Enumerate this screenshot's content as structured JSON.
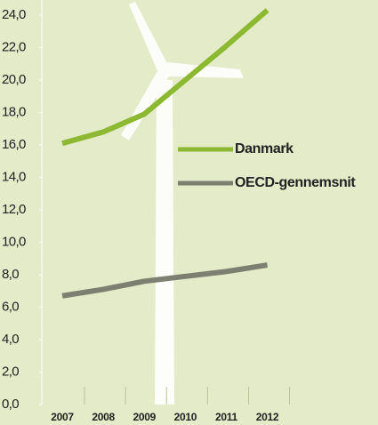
{
  "chart_data": {
    "type": "line",
    "x": [
      2007,
      2008,
      2009,
      2010,
      2011,
      2012
    ],
    "xlim": [
      2006.5,
      2014.7
    ],
    "ylim": [
      0,
      24.8
    ],
    "yticks": [
      {
        "value": 0,
        "label": "0,0"
      },
      {
        "value": 2,
        "label": "2,0"
      },
      {
        "value": 4,
        "label": "4,0"
      },
      {
        "value": 6,
        "label": "6,0"
      },
      {
        "value": 8,
        "label": "8,0"
      },
      {
        "value": 10,
        "label": "10,0"
      },
      {
        "value": 12,
        "label": "12,0"
      },
      {
        "value": 14,
        "label": "14,0"
      },
      {
        "value": 16,
        "label": "16,0"
      },
      {
        "value": 18,
        "label": "18,0"
      },
      {
        "value": 20,
        "label": "20,0"
      },
      {
        "value": 22,
        "label": "22,0"
      },
      {
        "value": 24,
        "label": "24,0"
      }
    ],
    "series": [
      {
        "name": "Danmark",
        "color": "#8cb832",
        "values": [
          16.1,
          16.8,
          17.9,
          20.0,
          22.1,
          24.3
        ]
      },
      {
        "name": "OECD-gennemsnit",
        "color": "#7d8070",
        "values": [
          6.7,
          7.1,
          7.6,
          7.9,
          8.2,
          8.6
        ]
      }
    ]
  }
}
